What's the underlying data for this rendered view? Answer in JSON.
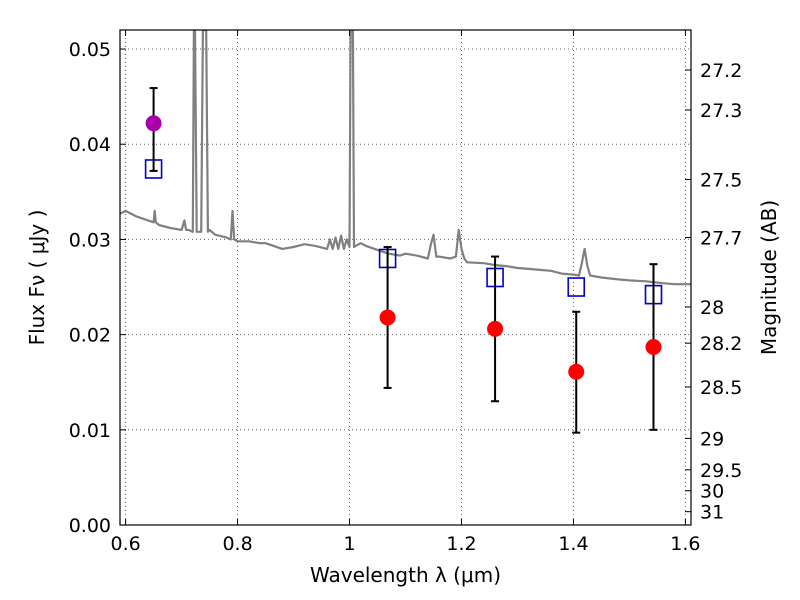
{
  "chart_data": {
    "type": "scatter",
    "xlabel": "Wavelength  λ (μm)",
    "ylabel": "Flux  Fν  ( μJy )",
    "y2label": "Magnitude (AB)",
    "xlim": [
      0.59,
      1.61
    ],
    "ylim": [
      0.0,
      0.052
    ],
    "grid": true,
    "x_ticks": [
      {
        "v": 0.6,
        "label": "0.6"
      },
      {
        "v": 0.8,
        "label": "0.8"
      },
      {
        "v": 1.0,
        "label": "1"
      },
      {
        "v": 1.2,
        "label": "1.2"
      },
      {
        "v": 1.4,
        "label": "1.4"
      },
      {
        "v": 1.6,
        "label": "1.6"
      }
    ],
    "y_ticks": [
      {
        "v": 0.0,
        "label": "0.00"
      },
      {
        "v": 0.01,
        "label": "0.01"
      },
      {
        "v": 0.02,
        "label": "0.02"
      },
      {
        "v": 0.03,
        "label": "0.03"
      },
      {
        "v": 0.04,
        "label": "0.04"
      },
      {
        "v": 0.05,
        "label": "0.05"
      }
    ],
    "y2_ticks": [
      {
        "label": "27.2",
        "flux": 0.0478
      },
      {
        "label": "27.3",
        "flux": 0.0436
      },
      {
        "label": "27.5",
        "flux": 0.0363
      },
      {
        "label": "27.7",
        "flux": 0.0302
      },
      {
        "label": "28",
        "flux": 0.0229
      },
      {
        "label": "28.2",
        "flux": 0.0191
      },
      {
        "label": "28.5",
        "flux": 0.0145
      },
      {
        "label": "29",
        "flux": 0.0091
      },
      {
        "label": "29.5",
        "flux": 0.0058
      },
      {
        "label": "30",
        "flux": 0.0036
      },
      {
        "label": "31",
        "flux": 0.0014
      }
    ],
    "series": [
      {
        "kind": "line",
        "color": "#808080",
        "x": [
          0.59,
          0.6,
          0.62,
          0.64,
          0.65,
          0.652,
          0.654,
          0.66,
          0.68,
          0.7,
          0.705,
          0.708,
          0.712,
          0.72,
          0.722,
          0.724,
          0.727,
          0.73,
          0.735,
          0.738,
          0.741,
          0.744,
          0.747,
          0.75,
          0.76,
          0.78,
          0.788,
          0.791,
          0.794,
          0.8,
          0.82,
          0.84,
          0.85,
          0.86,
          0.88,
          0.9,
          0.92,
          0.94,
          0.96,
          0.965,
          0.97,
          0.975,
          0.98,
          0.985,
          0.99,
          0.995,
          1.0,
          1.002,
          1.004,
          1.006,
          1.008,
          1.01,
          1.02,
          1.03,
          1.05,
          1.07,
          1.09,
          1.1,
          1.12,
          1.14,
          1.145,
          1.15,
          1.155,
          1.16,
          1.18,
          1.19,
          1.195,
          1.2,
          1.205,
          1.21,
          1.24,
          1.26,
          1.28,
          1.3,
          1.32,
          1.34,
          1.36,
          1.38,
          1.4,
          1.41,
          1.415,
          1.42,
          1.425,
          1.43,
          1.45,
          1.48,
          1.5,
          1.53,
          1.56,
          1.58,
          1.61
        ],
        "y": [
          0.0327,
          0.033,
          0.0324,
          0.032,
          0.0318,
          0.033,
          0.0318,
          0.0315,
          0.0312,
          0.031,
          0.032,
          0.031,
          0.031,
          0.0308,
          0.052,
          0.052,
          0.0308,
          0.0308,
          0.0308,
          0.052,
          0.052,
          0.052,
          0.0308,
          0.031,
          0.0305,
          0.0302,
          0.03,
          0.033,
          0.03,
          0.0298,
          0.0298,
          0.0296,
          0.0296,
          0.0294,
          0.029,
          0.0292,
          0.0295,
          0.0293,
          0.029,
          0.03,
          0.029,
          0.0302,
          0.029,
          0.0304,
          0.029,
          0.03,
          0.0292,
          0.052,
          0.052,
          0.052,
          0.0292,
          0.0293,
          0.0296,
          0.0293,
          0.0289,
          0.0285,
          0.0283,
          0.0285,
          0.0283,
          0.028,
          0.0294,
          0.0305,
          0.0282,
          0.0282,
          0.028,
          0.0282,
          0.031,
          0.029,
          0.028,
          0.0276,
          0.0275,
          0.0273,
          0.0272,
          0.027,
          0.0269,
          0.0268,
          0.0267,
          0.0264,
          0.0263,
          0.0262,
          0.0275,
          0.029,
          0.0272,
          0.0262,
          0.026,
          0.0258,
          0.0257,
          0.0256,
          0.0254,
          0.0253,
          0.0253
        ]
      },
      {
        "kind": "open-square",
        "color": "#0000cc",
        "x": [
          0.65,
          1.068,
          1.26,
          1.405,
          1.543
        ],
        "y": [
          0.0374,
          0.028,
          0.026,
          0.025,
          0.0242
        ]
      },
      {
        "kind": "filled-circle-errorbar",
        "color": "#ff0000",
        "x": [
          1.068,
          1.26,
          1.405,
          1.543
        ],
        "y": [
          0.0218,
          0.0206,
          0.0161,
          0.0187
        ],
        "yerr_low": [
          0.0144,
          0.013,
          0.0097,
          0.01
        ],
        "yerr_high": [
          0.0292,
          0.0282,
          0.0224,
          0.0274
        ]
      },
      {
        "kind": "filled-circle-errorbar",
        "color": "#aa00aa",
        "x": [
          0.65
        ],
        "y": [
          0.0422
        ],
        "yerr_low": [
          0.0372
        ],
        "yerr_high": [
          0.0459
        ]
      }
    ]
  }
}
